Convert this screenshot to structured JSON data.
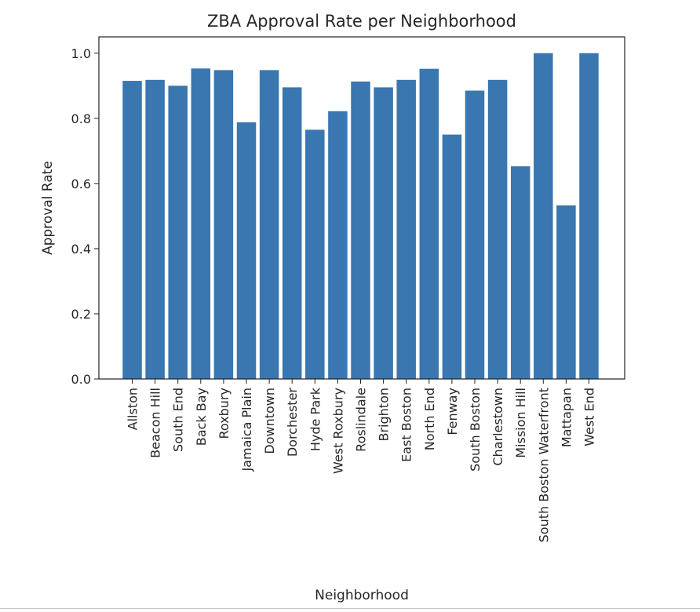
{
  "chart_data": {
    "type": "bar",
    "title": "ZBA Approval Rate per Neighborhood",
    "xlabel": "Neighborhood",
    "ylabel": "Approval Rate",
    "ylim": [
      0,
      1.05
    ],
    "yticks": [
      "0.0",
      "0.2",
      "0.4",
      "0.6",
      "0.8",
      "1.0"
    ],
    "grid": false,
    "bar_color": "#3a76af",
    "categories": [
      "Allston",
      "Beacon Hill",
      "South End",
      "Back Bay",
      "Roxbury",
      "Jamaica Plain",
      "Downtown",
      "Dorchester",
      "Hyde Park",
      "West Roxbury",
      "Roslindale",
      "Brighton",
      "East Boston",
      "North End",
      "Fenway",
      "South Boston",
      "Charlestown",
      "Mission Hill",
      "South Boston Waterfront",
      "Mattapan",
      "West End"
    ],
    "values": [
      0.915,
      0.918,
      0.9,
      0.953,
      0.948,
      0.788,
      0.948,
      0.895,
      0.765,
      0.822,
      0.913,
      0.895,
      0.918,
      0.952,
      0.75,
      0.885,
      0.918,
      0.653,
      1.0,
      0.533,
      1.0
    ]
  }
}
